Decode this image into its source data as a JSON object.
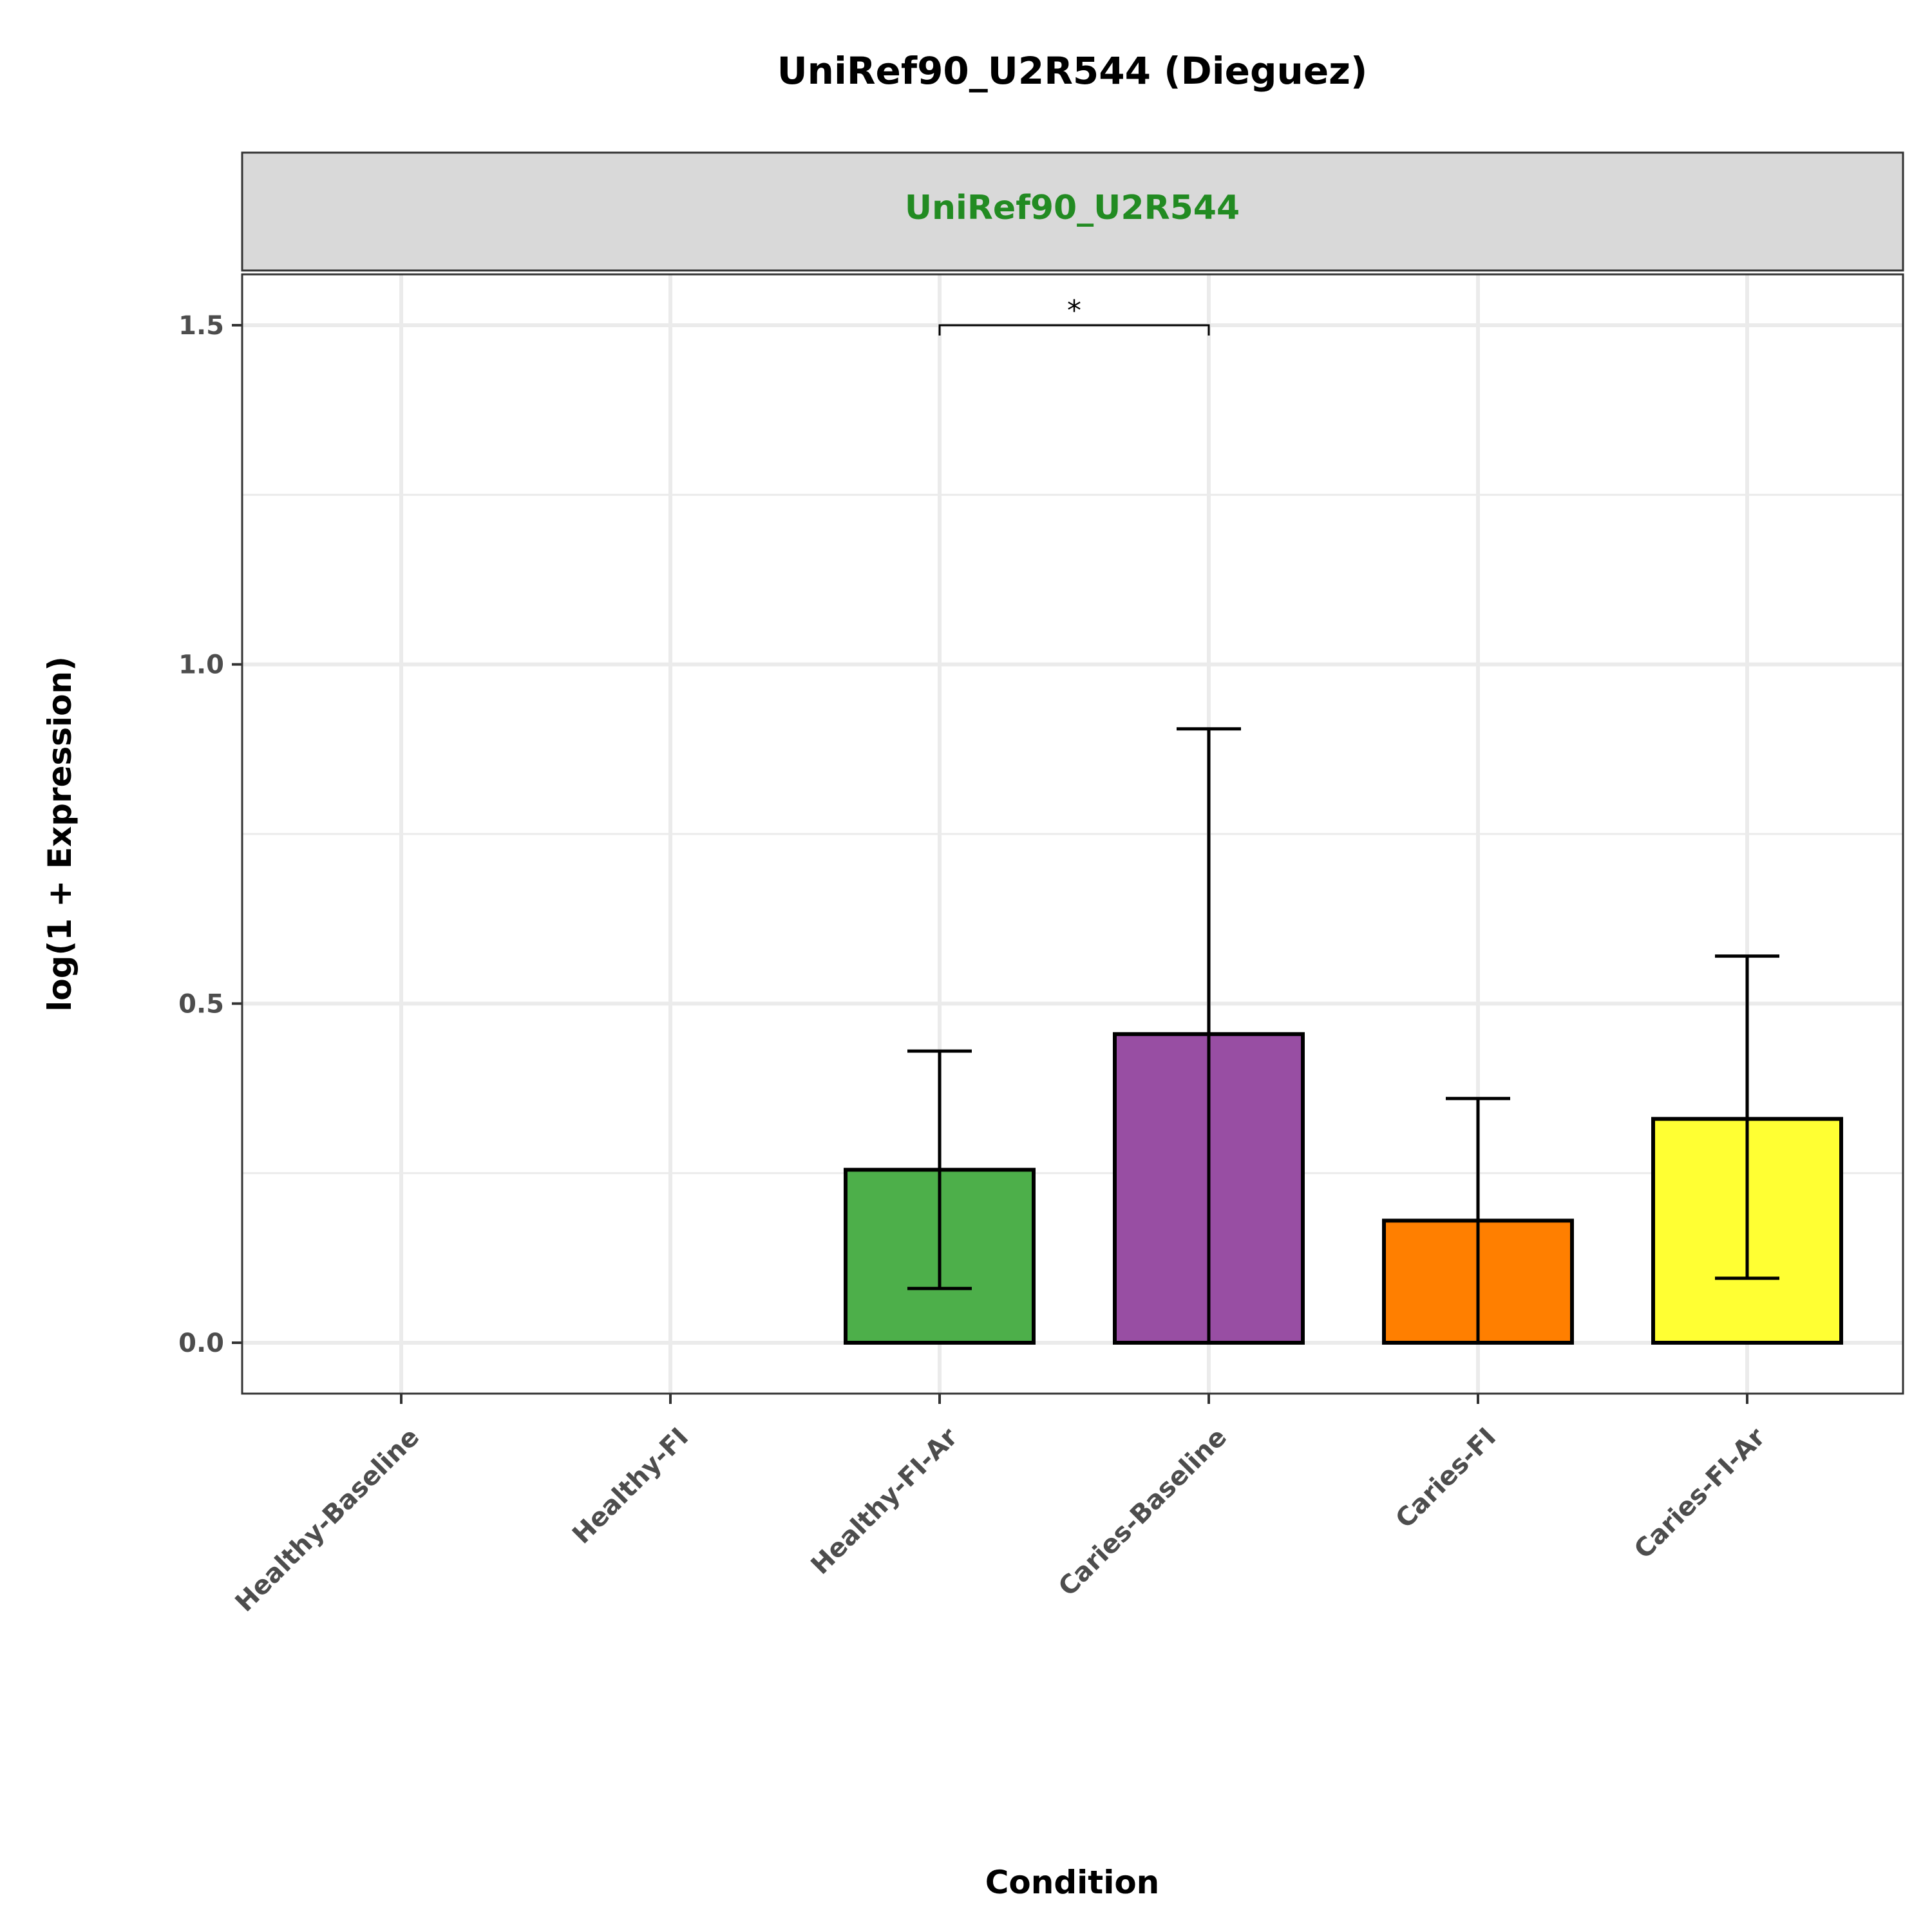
{
  "chart_data": {
    "type": "bar",
    "title": "UniRef90_U2R544 (Dieguez)",
    "facet_label": "UniRef90_U2R544",
    "xlabel": "Condition",
    "ylabel": "log(1 + Expression)",
    "categories": [
      "Healthy-Baseline",
      "Healthy-FI",
      "Healthy-FI-Ar",
      "Caries-Baseline",
      "Caries-FI",
      "Caries-FI-Ar"
    ],
    "values": [
      0.0,
      0.0,
      0.255,
      0.455,
      0.18,
      0.33
    ],
    "error_lower": [
      0.0,
      0.0,
      0.08,
      0.0,
      0.0,
      0.095
    ],
    "error_upper": [
      0.0,
      0.0,
      0.43,
      0.905,
      0.36,
      0.57
    ],
    "bar_colors": [
      "#E41A1C",
      "#377EB8",
      "#4DAF4A",
      "#984EA3",
      "#FF7F00",
      "#FFFF33"
    ],
    "ylim": [
      -0.075,
      1.575
    ],
    "yticks": [
      "0.0",
      "0.5",
      "1.0",
      "1.5"
    ],
    "ytick_values": [
      0.0,
      0.5,
      1.0,
      1.5
    ],
    "grid": true,
    "significance": [
      {
        "from": "Healthy-FI-Ar",
        "to": "Caries-Baseline",
        "label": "*",
        "y": 1.5
      }
    ]
  }
}
